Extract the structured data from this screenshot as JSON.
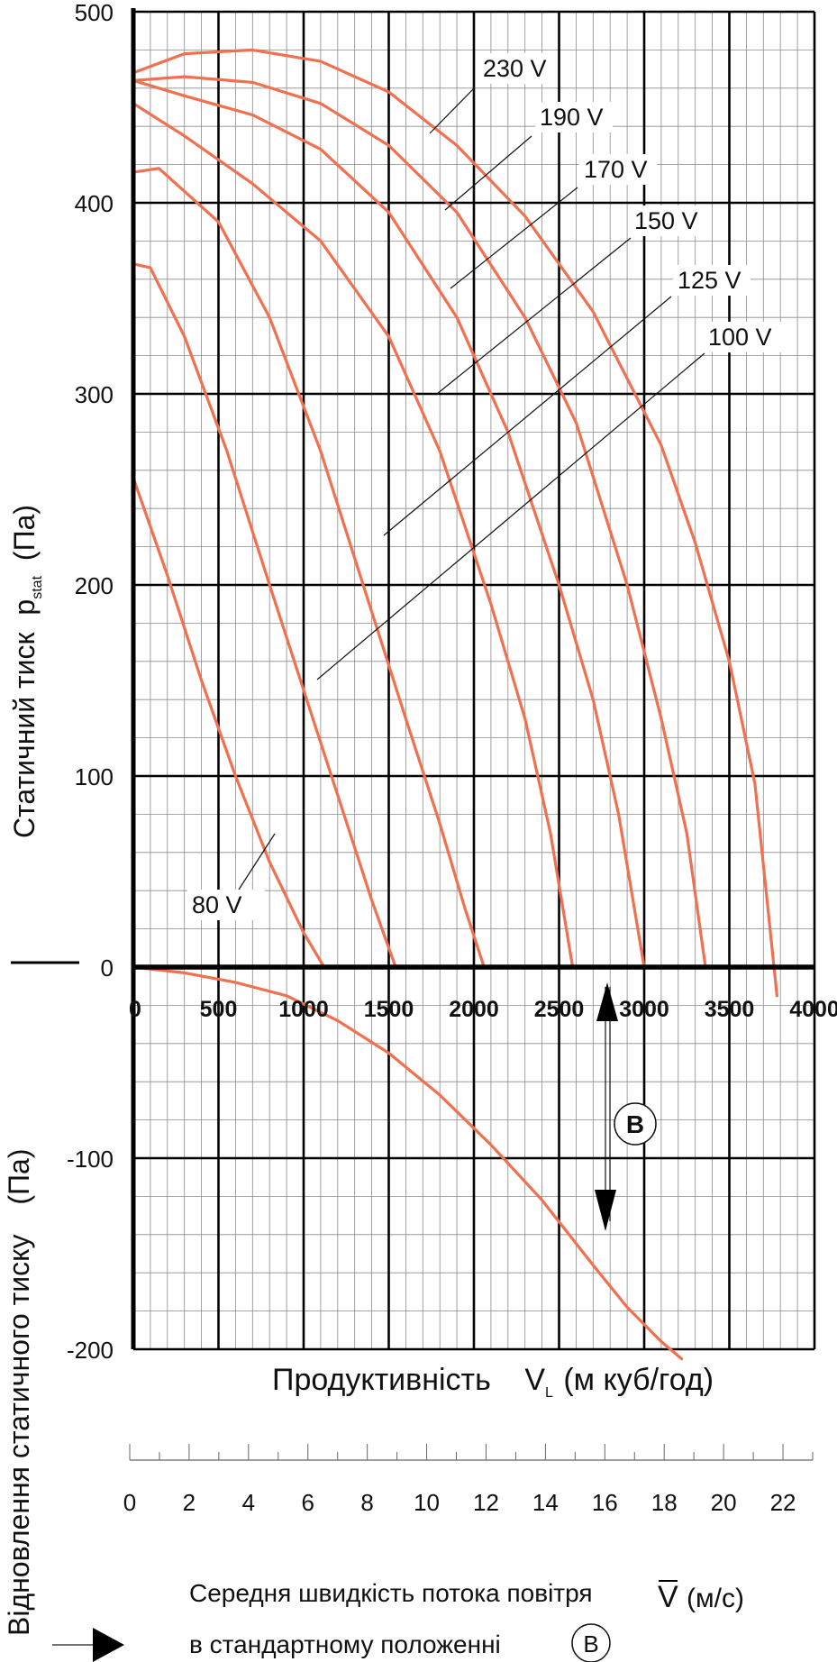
{
  "chart_data": {
    "type": "line",
    "ylabel_main": "Статичний тиск",
    "ylabel_symbol": "p",
    "ylabel_sub": "stat",
    "ylabel_unit": "(Па)",
    "ylabel_lower": "Відновлення статичного тиску",
    "ylabel_lower_unit": "(Па)",
    "xlabel": "Продуктивність",
    "xlabel_symbol": "V",
    "xlabel_sub": "L",
    "xlabel_unit": "(м куб/год)",
    "xlim": [
      0,
      4000
    ],
    "ylim": [
      -200,
      500
    ],
    "x_ticks": [
      0,
      500,
      1000,
      1500,
      2000,
      2500,
      3000,
      3500,
      4000
    ],
    "y_ticks": [
      -200,
      -100,
      0,
      100,
      200,
      300,
      400,
      500
    ],
    "grid": true,
    "series": [
      {
        "name": "230 V",
        "color": "#f07050",
        "x": [
          0,
          300,
          700,
          1100,
          1500,
          1900,
          2300,
          2700,
          3100,
          3300,
          3500,
          3650,
          3780
        ],
        "y": [
          468,
          478,
          480,
          474,
          458,
          430,
          393,
          343,
          273,
          222,
          160,
          96,
          -15
        ]
      },
      {
        "name": "190 V",
        "color": "#f07050",
        "x": [
          0,
          300,
          700,
          1100,
          1500,
          1900,
          2300,
          2600,
          2900,
          3100,
          3250,
          3360
        ],
        "y": [
          464,
          466,
          463,
          452,
          430,
          395,
          340,
          285,
          200,
          130,
          70,
          0
        ]
      },
      {
        "name": "170 V",
        "color": "#f07050",
        "x": [
          0,
          300,
          700,
          1100,
          1500,
          1900,
          2200,
          2500,
          2700,
          2850,
          3000
        ],
        "y": [
          464,
          456,
          446,
          428,
          395,
          340,
          280,
          200,
          140,
          80,
          0
        ]
      },
      {
        "name": "150 V",
        "color": "#f07050",
        "x": [
          0,
          300,
          700,
          1100,
          1500,
          1800,
          2100,
          2300,
          2450,
          2580
        ],
        "y": [
          452,
          435,
          410,
          380,
          330,
          270,
          190,
          130,
          70,
          0
        ]
      },
      {
        "name": "125 V",
        "color": "#f07050",
        "x": [
          0,
          150,
          500,
          800,
          1100,
          1350,
          1600,
          1800,
          1950,
          2060
        ],
        "y": [
          416,
          418,
          390,
          340,
          270,
          200,
          130,
          75,
          30,
          0
        ]
      },
      {
        "name": "100 V",
        "color": "#f07050",
        "x": [
          0,
          100,
          300,
          550,
          800,
          1000,
          1200,
          1400,
          1540
        ],
        "y": [
          368,
          366,
          330,
          270,
          200,
          145,
          90,
          35,
          0
        ]
      },
      {
        "name": "80 V",
        "color": "#f07050",
        "x": [
          0,
          200,
          400,
          600,
          800,
          1000,
          1120
        ],
        "y": [
          256,
          205,
          150,
          100,
          55,
          18,
          0
        ]
      },
      {
        "color": "#f07050",
        "x": [
          0,
          300,
          600,
          900,
          1200,
          1500,
          1800,
          2100,
          2400,
          2700,
          2900,
          3100,
          3220
        ],
        "y": [
          0,
          -3,
          -8,
          -15,
          -28,
          -45,
          -67,
          -93,
          -122,
          -156,
          -178,
          -196,
          -205
        ]
      }
    ],
    "annotations": {
      "marker_b": "B",
      "bottom_line_1": "Середня швидкість потока повітря",
      "bottom_symbol": "V",
      "bottom_unit": "(м/с)",
      "bottom_line_2": "в стандартному положенні",
      "bottom_marker": "B"
    },
    "secondary_axis": {
      "label": "Середня швидкість потока повітря",
      "unit": "м/с",
      "range": [
        0,
        23
      ],
      "ticks": [
        0,
        2,
        4,
        6,
        8,
        10,
        12,
        14,
        16,
        18,
        20,
        22
      ]
    }
  }
}
